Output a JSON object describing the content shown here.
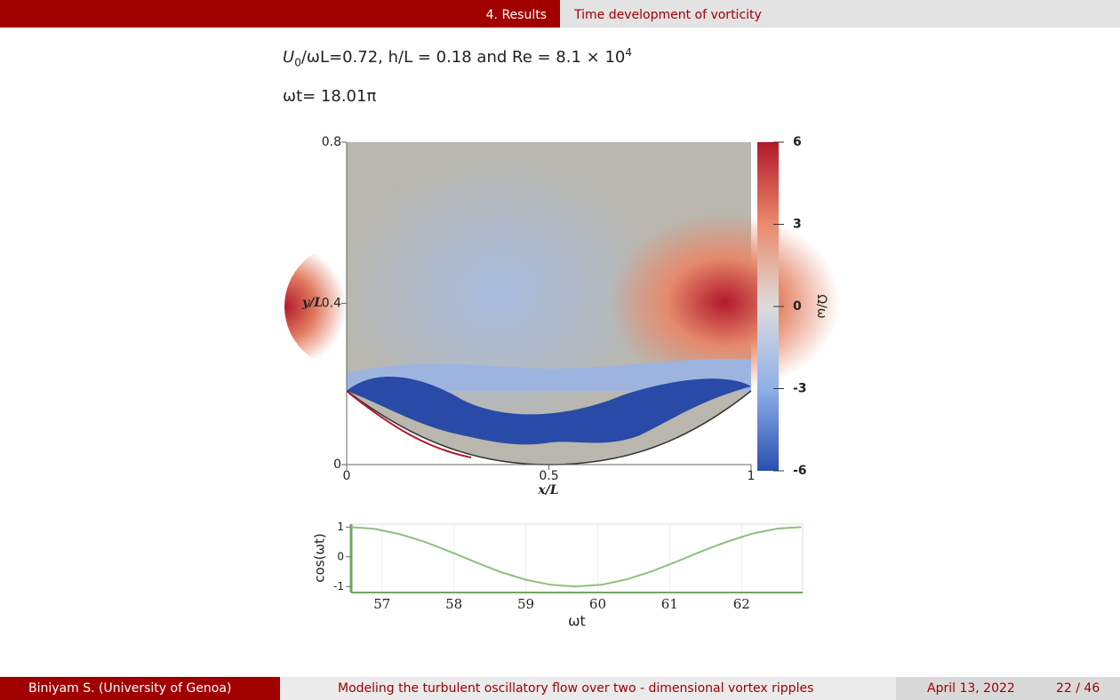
{
  "header": {
    "section": "4. Results",
    "title": "Time development of vorticity"
  },
  "params": [
    "U",
    "0",
    "/ωL=0.72, h/L = 0.18 and Re = 8.1 × 10",
    "4"
  ],
  "time": "ωt= 18.01π",
  "chart_data": [
    {
      "type": "field",
      "xlabel": "x/L",
      "ylabel": "y/L",
      "xlim": [
        0,
        1
      ],
      "ylim": [
        0,
        0.8
      ],
      "xticks": [
        0,
        {
          "value": 0.5,
          "label": "0.5"
        },
        1
      ],
      "yticks": [
        0,
        {
          "value": 0.4,
          "label": "0.4"
        },
        {
          "value": 0.8,
          "label": "0.8"
        }
      ],
      "colorbar": {
        "label": "Ω/ω",
        "lim": [
          -6,
          6
        ],
        "ticks": [
          6,
          3,
          0,
          -3,
          -6
        ]
      }
    },
    {
      "type": "line",
      "xlabel": "ωt",
      "ylabel": "cos(ωt)",
      "xlim": [
        56.57,
        62.85
      ],
      "ylim": [
        -1.2,
        1.1
      ],
      "xticks": [
        57,
        58,
        59,
        60,
        61,
        62
      ],
      "yticks": [
        1,
        0,
        -1
      ],
      "color": "#8fbf7f",
      "x": [
        56.57,
        56.9,
        57.25,
        57.6,
        57.95,
        58.3,
        58.65,
        59.0,
        59.35,
        59.69,
        60.05,
        60.4,
        60.75,
        61.1,
        61.45,
        61.8,
        62.15,
        62.5,
        62.83
      ],
      "values": [
        1,
        0.94,
        0.76,
        0.5,
        0.17,
        -0.18,
        -0.51,
        -0.77,
        -0.94,
        -1,
        -0.94,
        -0.76,
        -0.49,
        -0.16,
        0.19,
        0.51,
        0.78,
        0.95,
        1
      ]
    }
  ],
  "footer": {
    "author": "Biniyam S.  (University of Genoa)",
    "title": "Modeling the turbulent oscillatory flow over two - dimensional vortex ripples",
    "date": "April 13, 2022",
    "page": "22 / 46"
  }
}
